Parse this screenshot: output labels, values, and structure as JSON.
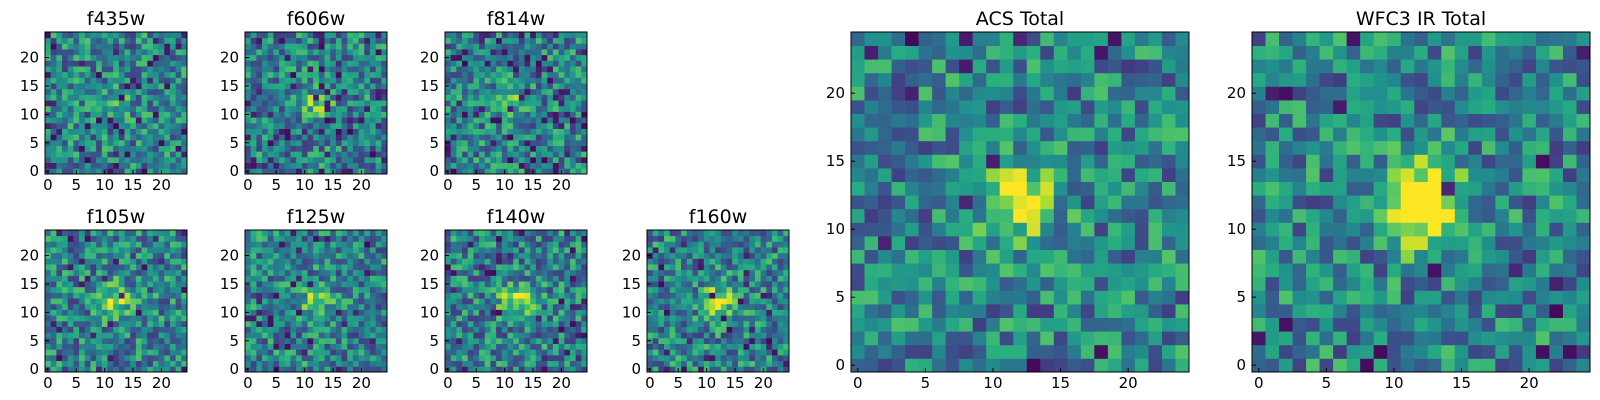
{
  "figure": {
    "background": "#ffffff"
  },
  "chart_data": [
    {
      "type": "heatmap",
      "title": "f435w",
      "grid": "25x25",
      "seed": 11,
      "blob": 0.15,
      "dark": 0.07,
      "xticks": [
        0,
        5,
        10,
        15,
        20
      ],
      "yticks": [
        0,
        5,
        10,
        15,
        20
      ],
      "xlim": [
        0,
        24
      ],
      "ylim": [
        0,
        24
      ],
      "colormap": "viridis"
    },
    {
      "type": "heatmap",
      "title": "f606w",
      "grid": "25x25",
      "seed": 23,
      "blob": 0.25,
      "dark": 0.08,
      "xticks": [
        0,
        5,
        10,
        15,
        20
      ],
      "yticks": [
        0,
        5,
        10,
        15,
        20
      ],
      "xlim": [
        0,
        24
      ],
      "ylim": [
        0,
        24
      ],
      "colormap": "viridis"
    },
    {
      "type": "heatmap",
      "title": "f814w",
      "grid": "25x25",
      "seed": 37,
      "blob": 0.2,
      "dark": 0.09,
      "xticks": [
        0,
        5,
        10,
        15,
        20
      ],
      "yticks": [
        0,
        5,
        10,
        15,
        20
      ],
      "xlim": [
        0,
        24
      ],
      "ylim": [
        0,
        24
      ],
      "colormap": "viridis"
    },
    {
      "type": "heatmap",
      "title": "f105w",
      "grid": "25x25",
      "seed": 41,
      "blob": 0.4,
      "dark": 0.06,
      "xticks": [
        0,
        5,
        10,
        15,
        20
      ],
      "yticks": [
        0,
        5,
        10,
        15,
        20
      ],
      "xlim": [
        0,
        24
      ],
      "ylim": [
        0,
        24
      ],
      "colormap": "viridis"
    },
    {
      "type": "heatmap",
      "title": "f125w",
      "grid": "25x25",
      "seed": 53,
      "blob": 0.35,
      "dark": 0.07,
      "xticks": [
        0,
        5,
        10,
        15,
        20
      ],
      "yticks": [
        0,
        5,
        10,
        15,
        20
      ],
      "xlim": [
        0,
        24
      ],
      "ylim": [
        0,
        24
      ],
      "colormap": "viridis"
    },
    {
      "type": "heatmap",
      "title": "f140w",
      "grid": "25x25",
      "seed": 67,
      "blob": 0.45,
      "dark": 0.05,
      "xticks": [
        0,
        5,
        10,
        15,
        20
      ],
      "yticks": [
        0,
        5,
        10,
        15,
        20
      ],
      "xlim": [
        0,
        24
      ],
      "ylim": [
        0,
        24
      ],
      "colormap": "viridis"
    },
    {
      "type": "heatmap",
      "title": "f160w",
      "grid": "25x25",
      "seed": 79,
      "blob": 0.4,
      "dark": 0.06,
      "xticks": [
        0,
        5,
        10,
        15,
        20
      ],
      "yticks": [
        0,
        5,
        10,
        15,
        20
      ],
      "xlim": [
        0,
        24
      ],
      "ylim": [
        0,
        24
      ],
      "colormap": "viridis"
    },
    {
      "type": "heatmap",
      "title": "ACS Total",
      "grid": "25x25",
      "seed": 97,
      "blob": 0.5,
      "dark": 0.03,
      "xticks": [
        0,
        5,
        10,
        15,
        20
      ],
      "yticks": [
        0,
        5,
        10,
        15,
        20
      ],
      "xlim": [
        0,
        24
      ],
      "ylim": [
        0,
        24
      ],
      "colormap": "viridis"
    },
    {
      "type": "heatmap",
      "title": "WFC3 IR Total",
      "grid": "25x25",
      "seed": 113,
      "blob": 0.9,
      "dark": 0.03,
      "xticks": [
        0,
        5,
        10,
        15,
        20
      ],
      "yticks": [
        0,
        5,
        10,
        15,
        20
      ],
      "xlim": [
        0,
        24
      ],
      "ylim": [
        0,
        24
      ],
      "colormap": "viridis"
    }
  ]
}
